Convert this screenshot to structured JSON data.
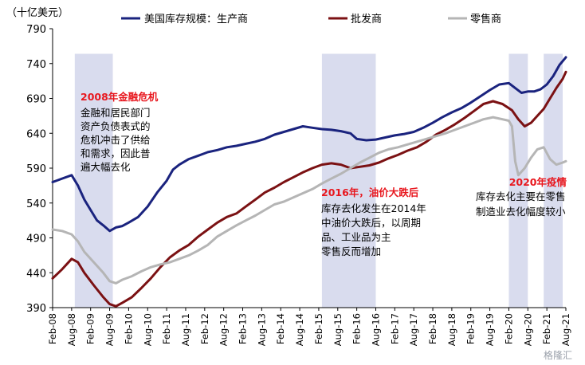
{
  "chart_data": {
    "type": "line",
    "unit_label": "（十亿美元）",
    "ylim": [
      390,
      790
    ],
    "yticks": [
      390,
      440,
      490,
      540,
      590,
      640,
      690,
      740,
      790
    ],
    "xlim": [
      "2008-02",
      "2021-08"
    ],
    "xticks": [
      "Feb-08",
      "Aug-08",
      "Feb-09",
      "Aug-09",
      "Feb-10",
      "Aug-10",
      "Feb-11",
      "Aug-11",
      "Feb-12",
      "Aug-12",
      "Feb-13",
      "Aug-13",
      "Feb-14",
      "Aug-14",
      "Feb-15",
      "Aug-15",
      "Feb-16",
      "Aug-16",
      "Feb-17",
      "Aug-17",
      "Feb-18",
      "Aug-18",
      "Feb-19",
      "Aug-19",
      "Feb-20",
      "Aug-20",
      "Feb-21",
      "Aug-21"
    ],
    "legend_position": "top",
    "grid": false,
    "shaded_periods": [
      {
        "start": "2008-09",
        "end": "2009-09"
      },
      {
        "start": "2015-03",
        "end": "2016-08"
      },
      {
        "start": "2020-02",
        "end": "2020-08"
      },
      {
        "start": "2021-01",
        "end": "2021-07"
      }
    ],
    "series": [
      {
        "name": "美国库存规模：生产商",
        "color": "#1a237e",
        "points": [
          [
            "2008-02",
            570
          ],
          [
            "2008-05",
            575
          ],
          [
            "2008-08",
            580
          ],
          [
            "2008-10",
            565
          ],
          [
            "2008-12",
            545
          ],
          [
            "2009-02",
            530
          ],
          [
            "2009-04",
            515
          ],
          [
            "2009-06",
            508
          ],
          [
            "2009-08",
            500
          ],
          [
            "2009-10",
            505
          ],
          [
            "2009-12",
            507
          ],
          [
            "2010-02",
            512
          ],
          [
            "2010-05",
            520
          ],
          [
            "2010-08",
            535
          ],
          [
            "2010-11",
            555
          ],
          [
            "2011-02",
            572
          ],
          [
            "2011-04",
            588
          ],
          [
            "2011-06",
            595
          ],
          [
            "2011-09",
            603
          ],
          [
            "2011-12",
            608
          ],
          [
            "2012-03",
            613
          ],
          [
            "2012-06",
            616
          ],
          [
            "2012-09",
            620
          ],
          [
            "2012-12",
            622
          ],
          [
            "2013-03",
            625
          ],
          [
            "2013-06",
            628
          ],
          [
            "2013-09",
            632
          ],
          [
            "2013-12",
            638
          ],
          [
            "2014-03",
            642
          ],
          [
            "2014-06",
            646
          ],
          [
            "2014-09",
            650
          ],
          [
            "2014-12",
            648
          ],
          [
            "2015-03",
            646
          ],
          [
            "2015-06",
            645
          ],
          [
            "2015-09",
            643
          ],
          [
            "2015-12",
            640
          ],
          [
            "2016-02",
            632
          ],
          [
            "2016-05",
            630
          ],
          [
            "2016-08",
            631
          ],
          [
            "2016-11",
            634
          ],
          [
            "2017-02",
            637
          ],
          [
            "2017-05",
            639
          ],
          [
            "2017-08",
            642
          ],
          [
            "2017-11",
            648
          ],
          [
            "2018-02",
            655
          ],
          [
            "2018-05",
            663
          ],
          [
            "2018-08",
            670
          ],
          [
            "2018-11",
            676
          ],
          [
            "2019-02",
            684
          ],
          [
            "2019-05",
            693
          ],
          [
            "2019-08",
            702
          ],
          [
            "2019-11",
            710
          ],
          [
            "2020-02",
            712
          ],
          [
            "2020-04",
            705
          ],
          [
            "2020-06",
            698
          ],
          [
            "2020-08",
            700
          ],
          [
            "2020-10",
            700
          ],
          [
            "2020-12",
            703
          ],
          [
            "2021-02",
            710
          ],
          [
            "2021-04",
            722
          ],
          [
            "2021-06",
            738
          ],
          [
            "2021-08",
            749
          ]
        ]
      },
      {
        "name": "批发商",
        "color": "#7b1113",
        "points": [
          [
            "2008-02",
            432
          ],
          [
            "2008-05",
            445
          ],
          [
            "2008-08",
            460
          ],
          [
            "2008-10",
            455
          ],
          [
            "2008-12",
            440
          ],
          [
            "2009-03",
            422
          ],
          [
            "2009-06",
            405
          ],
          [
            "2009-08",
            395
          ],
          [
            "2009-10",
            392
          ],
          [
            "2009-12",
            397
          ],
          [
            "2010-03",
            405
          ],
          [
            "2010-06",
            418
          ],
          [
            "2010-09",
            432
          ],
          [
            "2010-12",
            448
          ],
          [
            "2011-03",
            462
          ],
          [
            "2011-06",
            472
          ],
          [
            "2011-09",
            480
          ],
          [
            "2011-12",
            492
          ],
          [
            "2012-03",
            502
          ],
          [
            "2012-06",
            512
          ],
          [
            "2012-09",
            520
          ],
          [
            "2012-12",
            525
          ],
          [
            "2013-03",
            535
          ],
          [
            "2013-06",
            545
          ],
          [
            "2013-09",
            555
          ],
          [
            "2013-12",
            562
          ],
          [
            "2014-03",
            570
          ],
          [
            "2014-06",
            577
          ],
          [
            "2014-09",
            584
          ],
          [
            "2014-12",
            590
          ],
          [
            "2015-03",
            595
          ],
          [
            "2015-06",
            597
          ],
          [
            "2015-09",
            595
          ],
          [
            "2015-12",
            590
          ],
          [
            "2016-03",
            592
          ],
          [
            "2016-06",
            594
          ],
          [
            "2016-09",
            598
          ],
          [
            "2016-12",
            604
          ],
          [
            "2017-03",
            609
          ],
          [
            "2017-06",
            615
          ],
          [
            "2017-09",
            620
          ],
          [
            "2017-12",
            628
          ],
          [
            "2018-03",
            638
          ],
          [
            "2018-06",
            645
          ],
          [
            "2018-09",
            653
          ],
          [
            "2018-12",
            662
          ],
          [
            "2019-03",
            672
          ],
          [
            "2019-06",
            682
          ],
          [
            "2019-09",
            686
          ],
          [
            "2019-12",
            682
          ],
          [
            "2020-03",
            673
          ],
          [
            "2020-05",
            660
          ],
          [
            "2020-07",
            650
          ],
          [
            "2020-09",
            655
          ],
          [
            "2020-11",
            665
          ],
          [
            "2021-01",
            675
          ],
          [
            "2021-03",
            690
          ],
          [
            "2021-05",
            705
          ],
          [
            "2021-07",
            718
          ],
          [
            "2021-08",
            728
          ]
        ]
      },
      {
        "name": "零售商",
        "color": "#b5b5b5",
        "points": [
          [
            "2008-02",
            502
          ],
          [
            "2008-05",
            500
          ],
          [
            "2008-08",
            495
          ],
          [
            "2008-10",
            485
          ],
          [
            "2008-12",
            470
          ],
          [
            "2009-03",
            455
          ],
          [
            "2009-06",
            440
          ],
          [
            "2009-08",
            428
          ],
          [
            "2009-10",
            425
          ],
          [
            "2009-12",
            430
          ],
          [
            "2010-03",
            435
          ],
          [
            "2010-06",
            442
          ],
          [
            "2010-09",
            448
          ],
          [
            "2010-12",
            452
          ],
          [
            "2011-03",
            455
          ],
          [
            "2011-06",
            460
          ],
          [
            "2011-09",
            465
          ],
          [
            "2011-12",
            472
          ],
          [
            "2012-03",
            480
          ],
          [
            "2012-06",
            492
          ],
          [
            "2012-09",
            500
          ],
          [
            "2012-12",
            508
          ],
          [
            "2013-03",
            515
          ],
          [
            "2013-06",
            522
          ],
          [
            "2013-09",
            530
          ],
          [
            "2013-12",
            538
          ],
          [
            "2014-03",
            542
          ],
          [
            "2014-06",
            548
          ],
          [
            "2014-09",
            554
          ],
          [
            "2014-12",
            560
          ],
          [
            "2015-03",
            568
          ],
          [
            "2015-06",
            575
          ],
          [
            "2015-09",
            582
          ],
          [
            "2015-12",
            590
          ],
          [
            "2016-03",
            598
          ],
          [
            "2016-06",
            605
          ],
          [
            "2016-09",
            612
          ],
          [
            "2016-12",
            617
          ],
          [
            "2017-03",
            620
          ],
          [
            "2017-06",
            624
          ],
          [
            "2017-09",
            628
          ],
          [
            "2017-12",
            632
          ],
          [
            "2018-03",
            636
          ],
          [
            "2018-06",
            640
          ],
          [
            "2018-09",
            645
          ],
          [
            "2018-12",
            650
          ],
          [
            "2019-03",
            655
          ],
          [
            "2019-06",
            660
          ],
          [
            "2019-09",
            663
          ],
          [
            "2019-12",
            660
          ],
          [
            "2020-02",
            658
          ],
          [
            "2020-03",
            650
          ],
          [
            "2020-04",
            600
          ],
          [
            "2020-05",
            580
          ],
          [
            "2020-07",
            590
          ],
          [
            "2020-09",
            605
          ],
          [
            "2020-11",
            617
          ],
          [
            "2021-01",
            620
          ],
          [
            "2021-03",
            603
          ],
          [
            "2021-05",
            595
          ],
          [
            "2021-07",
            598
          ],
          [
            "2021-08",
            600
          ]
        ]
      }
    ],
    "annotations": [
      {
        "title": "2008年金融危机",
        "lines": [
          "金融和居民部门",
          "资产负债表式的",
          "危机冲击了供给",
          "和需求，因此普",
          "遍大幅去化"
        ]
      },
      {
        "title": "2016年，油价大跌后",
        "lines": [
          "库存去化发生在2014年",
          "中油价大跌后，以周期",
          "品、工业品为主",
          "零售反而增加"
        ]
      },
      {
        "title": "2020年疫情",
        "lines": [
          "库存去化主要在零售",
          "制造业去化幅度较小"
        ]
      }
    ]
  },
  "watermark": "格隆汇"
}
